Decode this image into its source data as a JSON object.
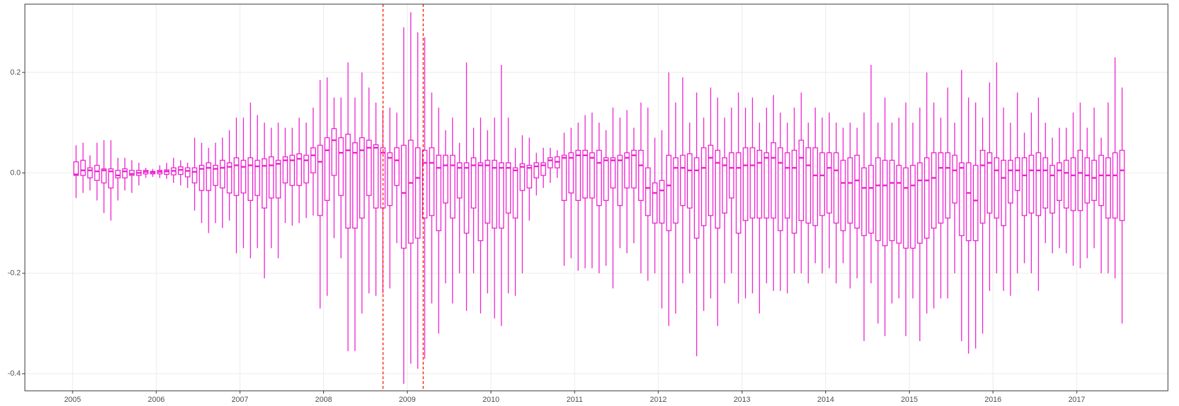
{
  "chart_data": {
    "type": "boxplot",
    "color": "#ee1fd0",
    "grid": true,
    "xlim": [
      2004.43,
      2018.09
    ],
    "ylim": [
      -0.434,
      0.336
    ],
    "xticks": [
      2005,
      2006,
      2007,
      2008,
      2009,
      2010,
      2011,
      2012,
      2013,
      2014,
      2015,
      2016,
      2017
    ],
    "yticks": [
      -0.4,
      -0.2,
      {
        "value": 0,
        "label": "0.0"
      },
      0.2
    ],
    "vlines": [
      2008.71,
      2009.19
    ],
    "vline_color": "#ff2200",
    "x": [
      2005.042,
      2005.125,
      2005.208,
      2005.292,
      2005.375,
      2005.458,
      2005.542,
      2005.625,
      2005.708,
      2005.792,
      2005.875,
      2005.958,
      2006.042,
      2006.125,
      2006.208,
      2006.292,
      2006.375,
      2006.458,
      2006.542,
      2006.625,
      2006.708,
      2006.792,
      2006.875,
      2006.958,
      2007.042,
      2007.125,
      2007.208,
      2007.292,
      2007.375,
      2007.458,
      2007.542,
      2007.625,
      2007.708,
      2007.792,
      2007.875,
      2007.958,
      2008.042,
      2008.125,
      2008.208,
      2008.292,
      2008.375,
      2008.458,
      2008.542,
      2008.625,
      2008.708,
      2008.792,
      2008.875,
      2008.958,
      2009.042,
      2009.125,
      2009.208,
      2009.292,
      2009.375,
      2009.458,
      2009.542,
      2009.625,
      2009.708,
      2009.792,
      2009.875,
      2009.958,
      2010.042,
      2010.125,
      2010.208,
      2010.292,
      2010.375,
      2010.458,
      2010.542,
      2010.625,
      2010.708,
      2010.792,
      2010.875,
      2010.958,
      2011.042,
      2011.125,
      2011.208,
      2011.292,
      2011.375,
      2011.458,
      2011.542,
      2011.625,
      2011.708,
      2011.792,
      2011.875,
      2011.958,
      2012.042,
      2012.125,
      2012.208,
      2012.292,
      2012.375,
      2012.458,
      2012.542,
      2012.625,
      2012.708,
      2012.792,
      2012.875,
      2012.958,
      2013.042,
      2013.125,
      2013.208,
      2013.292,
      2013.375,
      2013.458,
      2013.542,
      2013.625,
      2013.708,
      2013.792,
      2013.875,
      2013.958,
      2014.042,
      2014.125,
      2014.208,
      2014.292,
      2014.375,
      2014.458,
      2014.542,
      2014.625,
      2014.708,
      2014.792,
      2014.875,
      2014.958,
      2015.042,
      2015.125,
      2015.208,
      2015.292,
      2015.375,
      2015.458,
      2015.542,
      2015.625,
      2015.708,
      2015.792,
      2015.875,
      2015.958,
      2016.042,
      2016.125,
      2016.208,
      2016.292,
      2016.375,
      2016.458,
      2016.542,
      2016.625,
      2016.708,
      2016.792,
      2016.875,
      2016.958,
      2017.042,
      2017.125,
      2017.208,
      2017.292,
      2017.375,
      2017.458,
      2017.542
    ],
    "boxes": [
      [
        -0.05,
        -0.005,
        -0.003,
        0.022,
        0.055
      ],
      [
        -0.04,
        -0.005,
        0.005,
        0.025,
        0.06
      ],
      [
        -0.035,
        -0.01,
        0.005,
        0.01,
        0.035
      ],
      [
        -0.055,
        -0.015,
        0.003,
        0.015,
        0.06
      ],
      [
        -0.08,
        -0.02,
        0.005,
        0.008,
        0.065
      ],
      [
        -0.095,
        -0.03,
        0.003,
        0.008,
        0.065
      ],
      [
        -0.055,
        -0.01,
        -0.005,
        0.005,
        0.03
      ],
      [
        -0.035,
        -0.01,
        0.003,
        0.008,
        0.03
      ],
      [
        -0.04,
        -0.005,
        -0.002,
        0.005,
        0.025
      ],
      [
        -0.025,
        -0.005,
        0,
        0.005,
        0.02
      ],
      [
        -0.01,
        -0.002,
        0.002,
        0.005,
        0.01
      ],
      [
        -0.008,
        -0.002,
        0.001,
        0.003,
        0.008
      ],
      [
        -0.01,
        -0.002,
        0.002,
        0.005,
        0.015
      ],
      [
        -0.012,
        -0.003,
        0.003,
        0.006,
        0.02
      ],
      [
        -0.02,
        -0.004,
        0.004,
        0.01,
        0.03
      ],
      [
        -0.025,
        -0.003,
        0.006,
        0.012,
        0.025
      ],
      [
        -0.03,
        -0.008,
        0.004,
        0.01,
        0.02
      ],
      [
        -0.075,
        -0.02,
        0.002,
        0.01,
        0.07
      ],
      [
        -0.1,
        -0.035,
        0.008,
        0.015,
        0.06
      ],
      [
        -0.12,
        -0.035,
        0.01,
        0.02,
        0.05
      ],
      [
        -0.1,
        -0.025,
        0.008,
        0.015,
        0.06
      ],
      [
        -0.11,
        -0.03,
        0.01,
        0.025,
        0.07
      ],
      [
        -0.095,
        -0.04,
        0.012,
        0.02,
        0.085
      ],
      [
        -0.16,
        -0.045,
        0.015,
        0.03,
        0.11
      ],
      [
        -0.15,
        -0.04,
        0.012,
        0.025,
        0.11
      ],
      [
        -0.17,
        -0.055,
        0.015,
        0.03,
        0.14
      ],
      [
        -0.15,
        -0.045,
        0.013,
        0.025,
        0.115
      ],
      [
        -0.21,
        -0.07,
        0.014,
        0.028,
        0.1
      ],
      [
        -0.15,
        -0.05,
        0.015,
        0.032,
        0.09
      ],
      [
        -0.17,
        -0.05,
        0.018,
        0.025,
        0.1
      ],
      [
        -0.1,
        -0.02,
        0.025,
        0.032,
        0.09
      ],
      [
        -0.105,
        -0.025,
        0.025,
        0.035,
        0.09
      ],
      [
        -0.1,
        -0.025,
        0.028,
        0.038,
        0.11
      ],
      [
        -0.09,
        -0.02,
        0.025,
        0.035,
        0.1
      ],
      [
        -0.085,
        0,
        0.035,
        0.05,
        0.13
      ],
      [
        -0.27,
        -0.085,
        0.022,
        0.055,
        0.185
      ],
      [
        -0.245,
        -0.055,
        0.045,
        0.07,
        0.19
      ],
      [
        -0.13,
        -0.005,
        0.065,
        0.088,
        0.15
      ],
      [
        -0.17,
        -0.045,
        0.04,
        0.07,
        0.15
      ],
      [
        -0.355,
        -0.11,
        0.045,
        0.077,
        0.22
      ],
      [
        -0.355,
        -0.11,
        0.04,
        0.06,
        0.15
      ],
      [
        -0.28,
        -0.09,
        0.045,
        0.07,
        0.2
      ],
      [
        -0.24,
        -0.045,
        0.05,
        0.065,
        0.17
      ],
      [
        -0.245,
        -0.07,
        0.05,
        0.056,
        0.14
      ],
      [
        -0.24,
        -0.07,
        0.04,
        0.05,
        0.125
      ],
      [
        -0.23,
        -0.065,
        0.03,
        0.04,
        0.13
      ],
      [
        -0.14,
        -0.025,
        0.025,
        0.05,
        0.12
      ],
      [
        -0.42,
        -0.15,
        -0.04,
        0.055,
        0.29
      ],
      [
        -0.38,
        -0.14,
        -0.02,
        0.065,
        0.32
      ],
      [
        -0.39,
        -0.13,
        -0.01,
        0.05,
        0.28
      ],
      [
        -0.37,
        -0.09,
        0.02,
        0.045,
        0.27
      ],
      [
        -0.26,
        -0.085,
        0.02,
        0.05,
        0.16
      ],
      [
        -0.32,
        -0.115,
        0.01,
        0.035,
        0.13
      ],
      [
        -0.22,
        -0.06,
        0.015,
        0.035,
        0.085
      ],
      [
        -0.26,
        -0.09,
        0.015,
        0.035,
        0.11
      ],
      [
        -0.2,
        -0.05,
        0.01,
        0.02,
        0.06
      ],
      [
        -0.275,
        -0.12,
        0.01,
        0.02,
        0.22
      ],
      [
        -0.2,
        -0.07,
        0.015,
        0.03,
        0.09
      ],
      [
        -0.28,
        -0.135,
        0.015,
        0.02,
        0.11
      ],
      [
        -0.24,
        -0.1,
        0.015,
        0.025,
        0.085
      ],
      [
        -0.29,
        -0.11,
        0.01,
        0.025,
        0.11
      ],
      [
        -0.305,
        -0.11,
        0.01,
        0.02,
        0.215
      ],
      [
        -0.24,
        -0.08,
        0.01,
        0.02,
        0.11
      ],
      [
        -0.245,
        -0.09,
        0.005,
        0.01,
        0.05
      ],
      [
        -0.2,
        -0.035,
        0.012,
        0.018,
        0.075
      ],
      [
        -0.095,
        -0.03,
        0.01,
        0.015,
        0.07
      ],
      [
        -0.045,
        -0.01,
        0.013,
        0.02,
        0.04
      ],
      [
        -0.03,
        -0.005,
        0.015,
        0.02,
        0.05
      ],
      [
        -0.02,
        0.01,
        0.025,
        0.03,
        0.05
      ],
      [
        -0.01,
        0.01,
        0.022,
        0.032,
        0.045
      ],
      [
        -0.185,
        -0.055,
        0.03,
        0.035,
        0.08
      ],
      [
        -0.17,
        -0.04,
        0.03,
        0.04,
        0.09
      ],
      [
        -0.195,
        -0.055,
        0.035,
        0.045,
        0.1
      ],
      [
        -0.19,
        -0.05,
        0.035,
        0.045,
        0.115
      ],
      [
        -0.19,
        -0.05,
        0.03,
        0.04,
        0.12
      ],
      [
        -0.2,
        -0.065,
        0.02,
        0.045,
        0.1
      ],
      [
        -0.185,
        -0.055,
        0.025,
        0.03,
        0.085
      ],
      [
        -0.23,
        -0.03,
        0.025,
        0.03,
        0.13
      ],
      [
        -0.15,
        -0.065,
        0.025,
        0.035,
        0.11
      ],
      [
        -0.16,
        -0.03,
        0.03,
        0.04,
        0.125
      ],
      [
        -0.14,
        -0.03,
        0.035,
        0.045,
        0.09
      ],
      [
        -0.2,
        -0.055,
        0.015,
        0.045,
        0.14
      ],
      [
        -0.215,
        -0.085,
        -0.03,
        0.01,
        0.13
      ],
      [
        -0.2,
        -0.1,
        -0.04,
        -0.02,
        0.07
      ],
      [
        -0.27,
        -0.1,
        -0.035,
        -0.015,
        0.085
      ],
      [
        -0.305,
        -0.115,
        -0.025,
        0.035,
        0.2
      ],
      [
        -0.28,
        -0.1,
        0.01,
        0.03,
        0.14
      ],
      [
        -0.22,
        -0.065,
        0.01,
        0.035,
        0.19
      ],
      [
        -0.2,
        -0.07,
        0.005,
        0.038,
        0.1
      ],
      [
        -0.365,
        -0.13,
        0.005,
        0.03,
        0.16
      ],
      [
        -0.275,
        -0.105,
        0.01,
        0.05,
        0.11
      ],
      [
        -0.25,
        -0.085,
        0.03,
        0.055,
        0.17
      ],
      [
        -0.305,
        -0.11,
        0.02,
        0.045,
        0.15
      ],
      [
        -0.22,
        -0.08,
        0.015,
        0.03,
        0.11
      ],
      [
        -0.2,
        -0.05,
        0.01,
        0.04,
        0.13
      ],
      [
        -0.26,
        -0.12,
        0.01,
        0.04,
        0.16
      ],
      [
        -0.25,
        -0.095,
        0.015,
        0.05,
        0.13
      ],
      [
        -0.24,
        -0.09,
        0.015,
        0.05,
        0.15
      ],
      [
        -0.28,
        -0.09,
        0.02,
        0.045,
        0.1
      ],
      [
        -0.22,
        -0.09,
        0.03,
        0.04,
        0.13
      ],
      [
        -0.235,
        -0.09,
        0.03,
        0.06,
        0.155
      ],
      [
        -0.235,
        -0.115,
        0.02,
        0.05,
        0.12
      ],
      [
        -0.24,
        -0.09,
        0.01,
        0.04,
        0.1
      ],
      [
        -0.2,
        -0.12,
        0.01,
        0.045,
        0.13
      ],
      [
        -0.2,
        -0.095,
        0.03,
        0.065,
        0.16
      ],
      [
        -0.22,
        -0.1,
        0.015,
        0.05,
        0.1
      ],
      [
        -0.18,
        -0.105,
        -0.005,
        0.05,
        0.13
      ],
      [
        -0.2,
        -0.085,
        -0.005,
        0.04,
        0.11
      ],
      [
        -0.19,
        -0.08,
        0.01,
        0.04,
        0.12
      ],
      [
        -0.22,
        -0.1,
        0.005,
        0.04,
        0.1
      ],
      [
        -0.18,
        -0.115,
        -0.02,
        0.025,
        0.09
      ],
      [
        -0.23,
        -0.1,
        -0.02,
        0.03,
        0.1
      ],
      [
        -0.21,
        -0.11,
        -0.015,
        0.035,
        0.09
      ],
      [
        -0.335,
        -0.125,
        -0.03,
        0.01,
        0.12
      ],
      [
        -0.22,
        -0.12,
        -0.03,
        0.015,
        0.215
      ],
      [
        -0.3,
        -0.135,
        -0.025,
        0.03,
        0.1
      ],
      [
        -0.325,
        -0.145,
        -0.025,
        0.025,
        0.15
      ],
      [
        -0.26,
        -0.135,
        -0.02,
        0.025,
        0.1
      ],
      [
        -0.25,
        -0.14,
        -0.02,
        0.015,
        0.11
      ],
      [
        -0.325,
        -0.15,
        -0.03,
        0.01,
        0.14
      ],
      [
        -0.25,
        -0.15,
        -0.025,
        0.015,
        0.1
      ],
      [
        -0.335,
        -0.14,
        -0.015,
        0.02,
        0.13
      ],
      [
        -0.28,
        -0.13,
        -0.015,
        0.03,
        0.2
      ],
      [
        -0.27,
        -0.11,
        -0.01,
        0.04,
        0.14
      ],
      [
        -0.25,
        -0.1,
        0.01,
        0.04,
        0.11
      ],
      [
        -0.25,
        -0.09,
        0.01,
        0.04,
        0.17
      ],
      [
        -0.2,
        -0.06,
        0.005,
        0.035,
        0.1
      ],
      [
        -0.335,
        -0.125,
        0.01,
        0.02,
        0.205
      ],
      [
        -0.36,
        -0.135,
        -0.04,
        0.02,
        0.15
      ],
      [
        -0.35,
        -0.135,
        -0.055,
        0.015,
        0.14
      ],
      [
        -0.32,
        -0.1,
        0.015,
        0.045,
        0.11
      ],
      [
        -0.235,
        -0.08,
        0.02,
        0.04,
        0.18
      ],
      [
        -0.2,
        -0.09,
        0.005,
        0.03,
        0.22
      ],
      [
        -0.235,
        -0.105,
        -0.01,
        0.025,
        0.13
      ],
      [
        -0.245,
        -0.06,
        0.005,
        0.025,
        0.1
      ],
      [
        -0.2,
        -0.035,
        0.005,
        0.03,
        0.16
      ],
      [
        -0.18,
        -0.085,
        -0.005,
        0.03,
        0.08
      ],
      [
        -0.2,
        -0.08,
        0.005,
        0.035,
        0.12
      ],
      [
        -0.235,
        -0.085,
        0.005,
        0.04,
        0.15
      ],
      [
        -0.14,
        -0.07,
        0.005,
        0.03,
        0.1
      ],
      [
        -0.16,
        -0.08,
        -0.005,
        0.015,
        0.07
      ],
      [
        -0.15,
        -0.055,
        0.005,
        0.02,
        0.09
      ],
      [
        -0.16,
        -0.07,
        0,
        0.025,
        0.09
      ],
      [
        -0.185,
        -0.075,
        -0.005,
        0.03,
        0.12
      ],
      [
        -0.19,
        -0.075,
        0,
        0.045,
        0.14
      ],
      [
        -0.17,
        -0.06,
        -0.005,
        0.03,
        0.09
      ],
      [
        -0.15,
        -0.055,
        -0.01,
        0.025,
        0.13
      ],
      [
        -0.2,
        -0.065,
        -0.005,
        0.035,
        0.07
      ],
      [
        -0.2,
        -0.09,
        -0.005,
        0.03,
        0.14
      ],
      [
        -0.21,
        -0.09,
        -0.005,
        0.04,
        0.23
      ],
      [
        -0.3,
        -0.095,
        0.005,
        0.045,
        0.17
      ]
    ]
  }
}
